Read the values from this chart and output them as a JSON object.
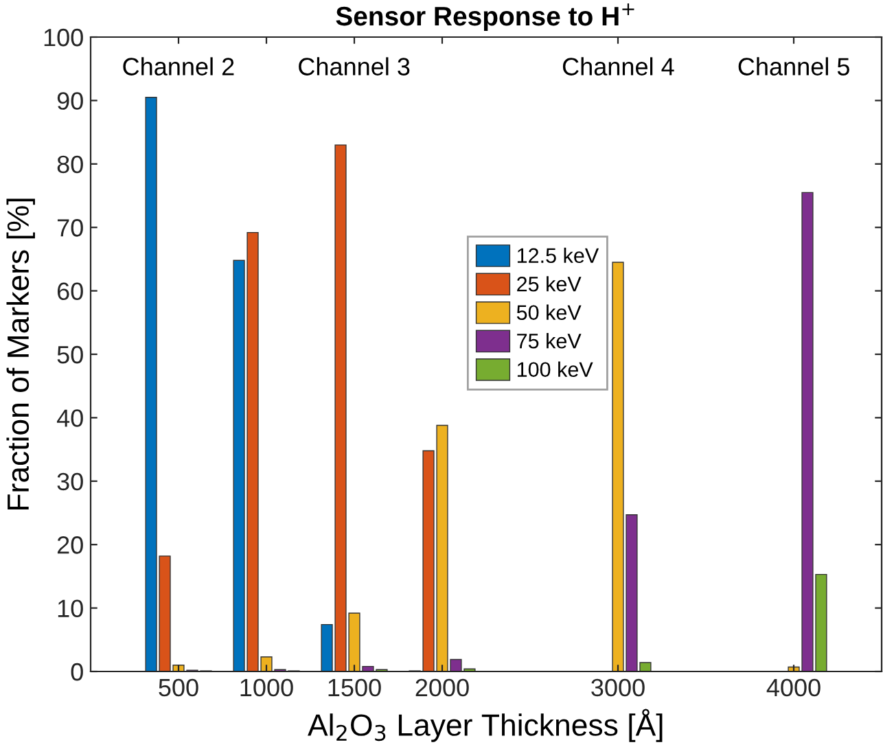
{
  "chart_data": {
    "type": "bar",
    "title": "Sensor Response to H$^{+}$",
    "xlabel": "Al$_{2}$O$_{3}$ Layer Thickness [Å]",
    "ylabel": "Fraction of Markers [%]",
    "x": [
      500,
      1000,
      1500,
      2000,
      3000,
      4000
    ],
    "series": [
      {
        "name": "12.5 keV",
        "color": "#0072bd",
        "values": [
          90.5,
          64.8,
          7.4,
          0.1,
          null,
          null
        ]
      },
      {
        "name": "25 keV",
        "color": "#d95319",
        "values": [
          18.2,
          69.2,
          83.0,
          34.8,
          null,
          null
        ]
      },
      {
        "name": "50 keV",
        "color": "#edb120",
        "values": [
          1.0,
          2.3,
          9.2,
          38.8,
          64.5,
          0.7
        ]
      },
      {
        "name": "75 keV",
        "color": "#7e2f8e",
        "values": [
          0.2,
          0.3,
          0.8,
          1.9,
          24.7,
          75.5
        ]
      },
      {
        "name": "100 keV",
        "color": "#77ac30",
        "values": [
          0.1,
          0.1,
          0.3,
          0.4,
          1.4,
          15.3
        ]
      }
    ],
    "annotations": [
      "Channel 2",
      "Channel 3",
      "Channel 4",
      "Channel 5"
    ],
    "xlim": [
      0,
      4500
    ],
    "xticks": [
      500,
      1000,
      1500,
      2000,
      3000,
      4000
    ],
    "ylim": [
      0,
      100
    ],
    "yticks": [
      0,
      10,
      20,
      30,
      40,
      50,
      60,
      70,
      80,
      90,
      100
    ],
    "grid": false,
    "legend": "center"
  }
}
